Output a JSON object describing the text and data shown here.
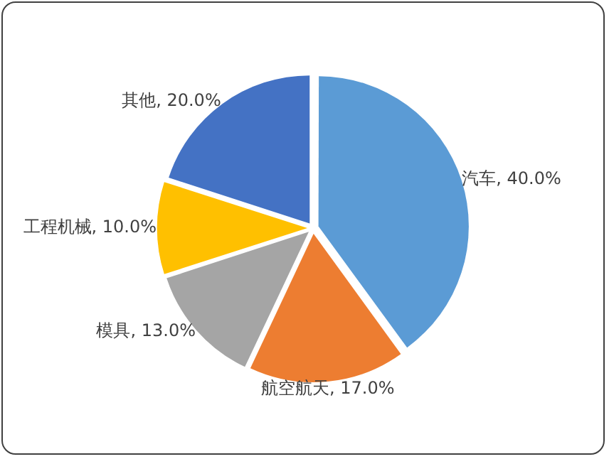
{
  "chart_data": {
    "type": "pie",
    "categories": [
      "汽车",
      "航空航天",
      "模具",
      "工程机械",
      "其他"
    ],
    "values": [
      40,
      17,
      13,
      10,
      20
    ],
    "colors": [
      "#5b9bd5",
      "#ed7d31",
      "#a5a5a5",
      "#ffc000",
      "#4472c4"
    ],
    "value_labels": [
      "40.0%",
      "17.0%",
      "13.0%",
      "10.0%",
      "20.0%"
    ],
    "legend": false
  }
}
